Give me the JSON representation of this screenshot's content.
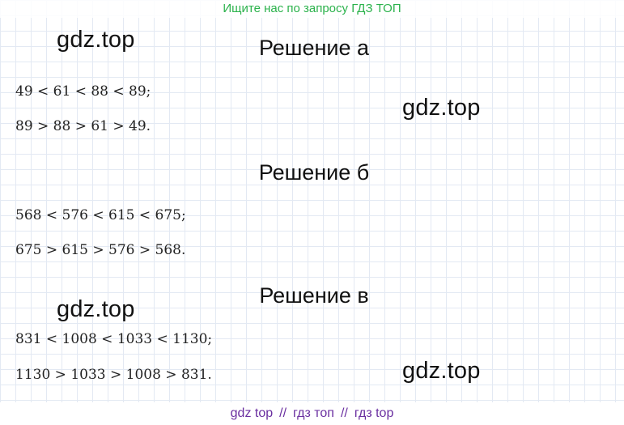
{
  "top_banner": "Ищите нас по запросу ГДЗ ТОП",
  "watermark": "gdz.top",
  "sections": [
    {
      "heading": "Решение а",
      "lines": [
        "49 < 61 < 88 < 89;",
        "89 > 88 > 61 > 49."
      ]
    },
    {
      "heading": "Решение б",
      "lines": [
        "568 < 576 < 615 < 675;",
        "675 > 615 > 576 > 568."
      ]
    },
    {
      "heading": "Решение в",
      "lines": [
        "831 < 1008 < 1033 < 1130;",
        "1130 > 1033 > 1008 > 831."
      ]
    }
  ],
  "bottom_banner": {
    "items": [
      "gdz top",
      "гдз топ",
      "гдз top"
    ],
    "separator": "//"
  }
}
